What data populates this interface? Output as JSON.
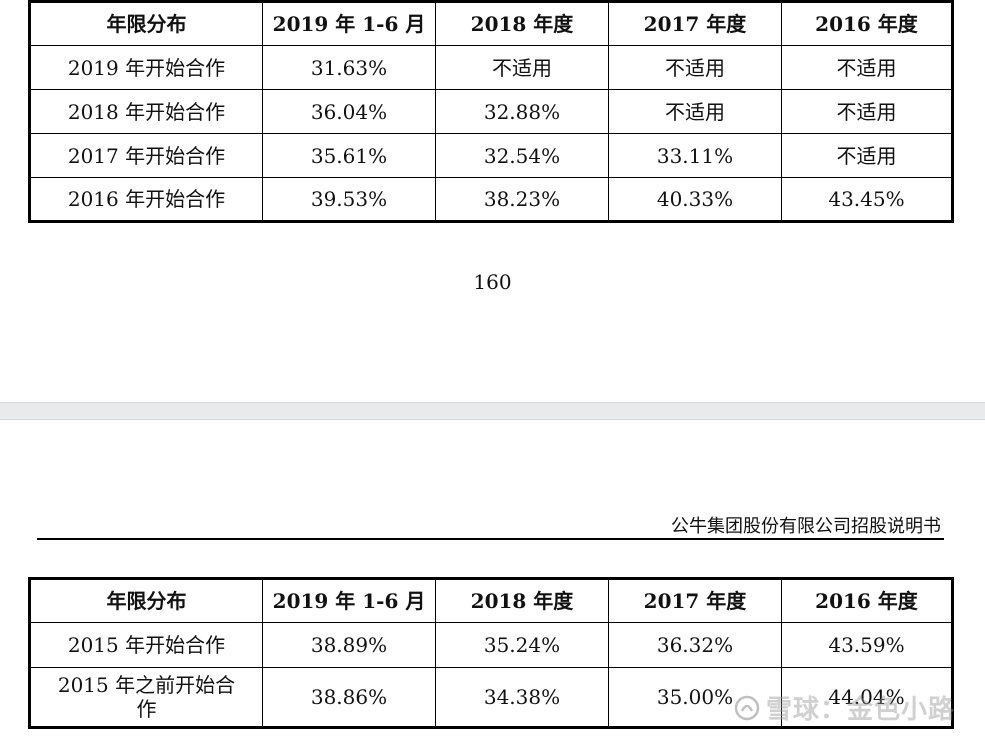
{
  "table_top": {
    "headers": [
      "年限分布",
      "2019 年 1-6 月",
      "2018 年度",
      "2017 年度",
      "2016 年度"
    ],
    "rows": [
      [
        "2019 年开始合作",
        "31.63%",
        "不适用",
        "不适用",
        "不适用"
      ],
      [
        "2018 年开始合作",
        "36.04%",
        "32.88%",
        "不适用",
        "不适用"
      ],
      [
        "2017 年开始合作",
        "35.61%",
        "32.54%",
        "33.11%",
        "不适用"
      ],
      [
        "2016 年开始合作",
        "39.53%",
        "38.23%",
        "40.33%",
        "43.45%"
      ]
    ]
  },
  "page_number": "160",
  "doc_header": "公牛集团股份有限公司招股说明书",
  "table_bottom": {
    "headers": [
      "年限分布",
      "2019 年 1-6 月",
      "2018 年度",
      "2017 年度",
      "2016 年度"
    ],
    "rows": [
      [
        "2015 年开始合作",
        "38.89%",
        "35.24%",
        "36.32%",
        "43.59%"
      ],
      [
        "2015 年之前开始合作",
        "38.86%",
        "34.38%",
        "35.00%",
        "44.04%"
      ]
    ]
  },
  "watermark": "雪球：金色小路",
  "watermark_icon": "snowball-logo-icon"
}
